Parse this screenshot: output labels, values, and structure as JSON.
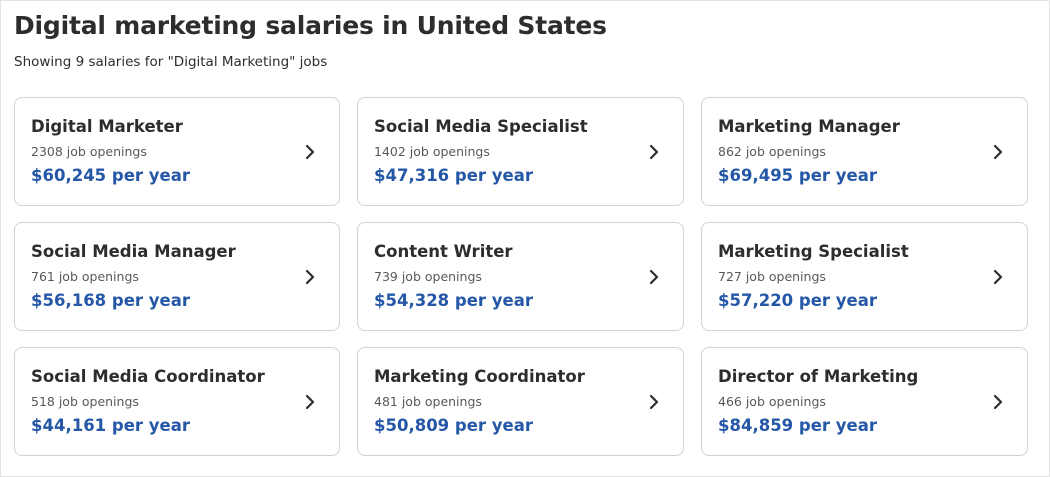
{
  "page": {
    "title": "Digital marketing salaries in United States",
    "subtitle": "Showing 9 salaries for \"Digital Marketing\" jobs"
  },
  "cards": [
    {
      "title": "Digital Marketer",
      "openings": "2308 job openings",
      "salary": "$60,245 per year",
      "icon": "chevron-right-icon"
    },
    {
      "title": "Social Media Specialist",
      "openings": "1402 job openings",
      "salary": "$47,316 per year",
      "icon": "chevron-right-icon"
    },
    {
      "title": "Marketing Manager",
      "openings": "862 job openings",
      "salary": "$69,495 per year",
      "icon": "chevron-right-icon"
    },
    {
      "title": "Social Media Manager",
      "openings": "761 job openings",
      "salary": "$56,168 per year",
      "icon": "chevron-right-icon"
    },
    {
      "title": "Content Writer",
      "openings": "739 job openings",
      "salary": "$54,328 per year",
      "icon": "chevron-right-icon"
    },
    {
      "title": "Marketing Specialist",
      "openings": "727 job openings",
      "salary": "$57,220 per year",
      "icon": "chevron-right-icon"
    },
    {
      "title": "Social Media Coordinator",
      "openings": "518 job openings",
      "salary": "$44,161 per year",
      "icon": "chevron-right-icon"
    },
    {
      "title": "Marketing Coordinator",
      "openings": "481 job openings",
      "salary": "$50,809 per year",
      "icon": "chevron-right-icon"
    },
    {
      "title": "Director of Marketing",
      "openings": "466 job openings",
      "salary": "$84,859 per year",
      "icon": "chevron-right-icon"
    }
  ],
  "colors": {
    "text": "#2d2d2d",
    "muted": "#595959",
    "salary": "#2557a7",
    "border": "#d4d2d0"
  }
}
